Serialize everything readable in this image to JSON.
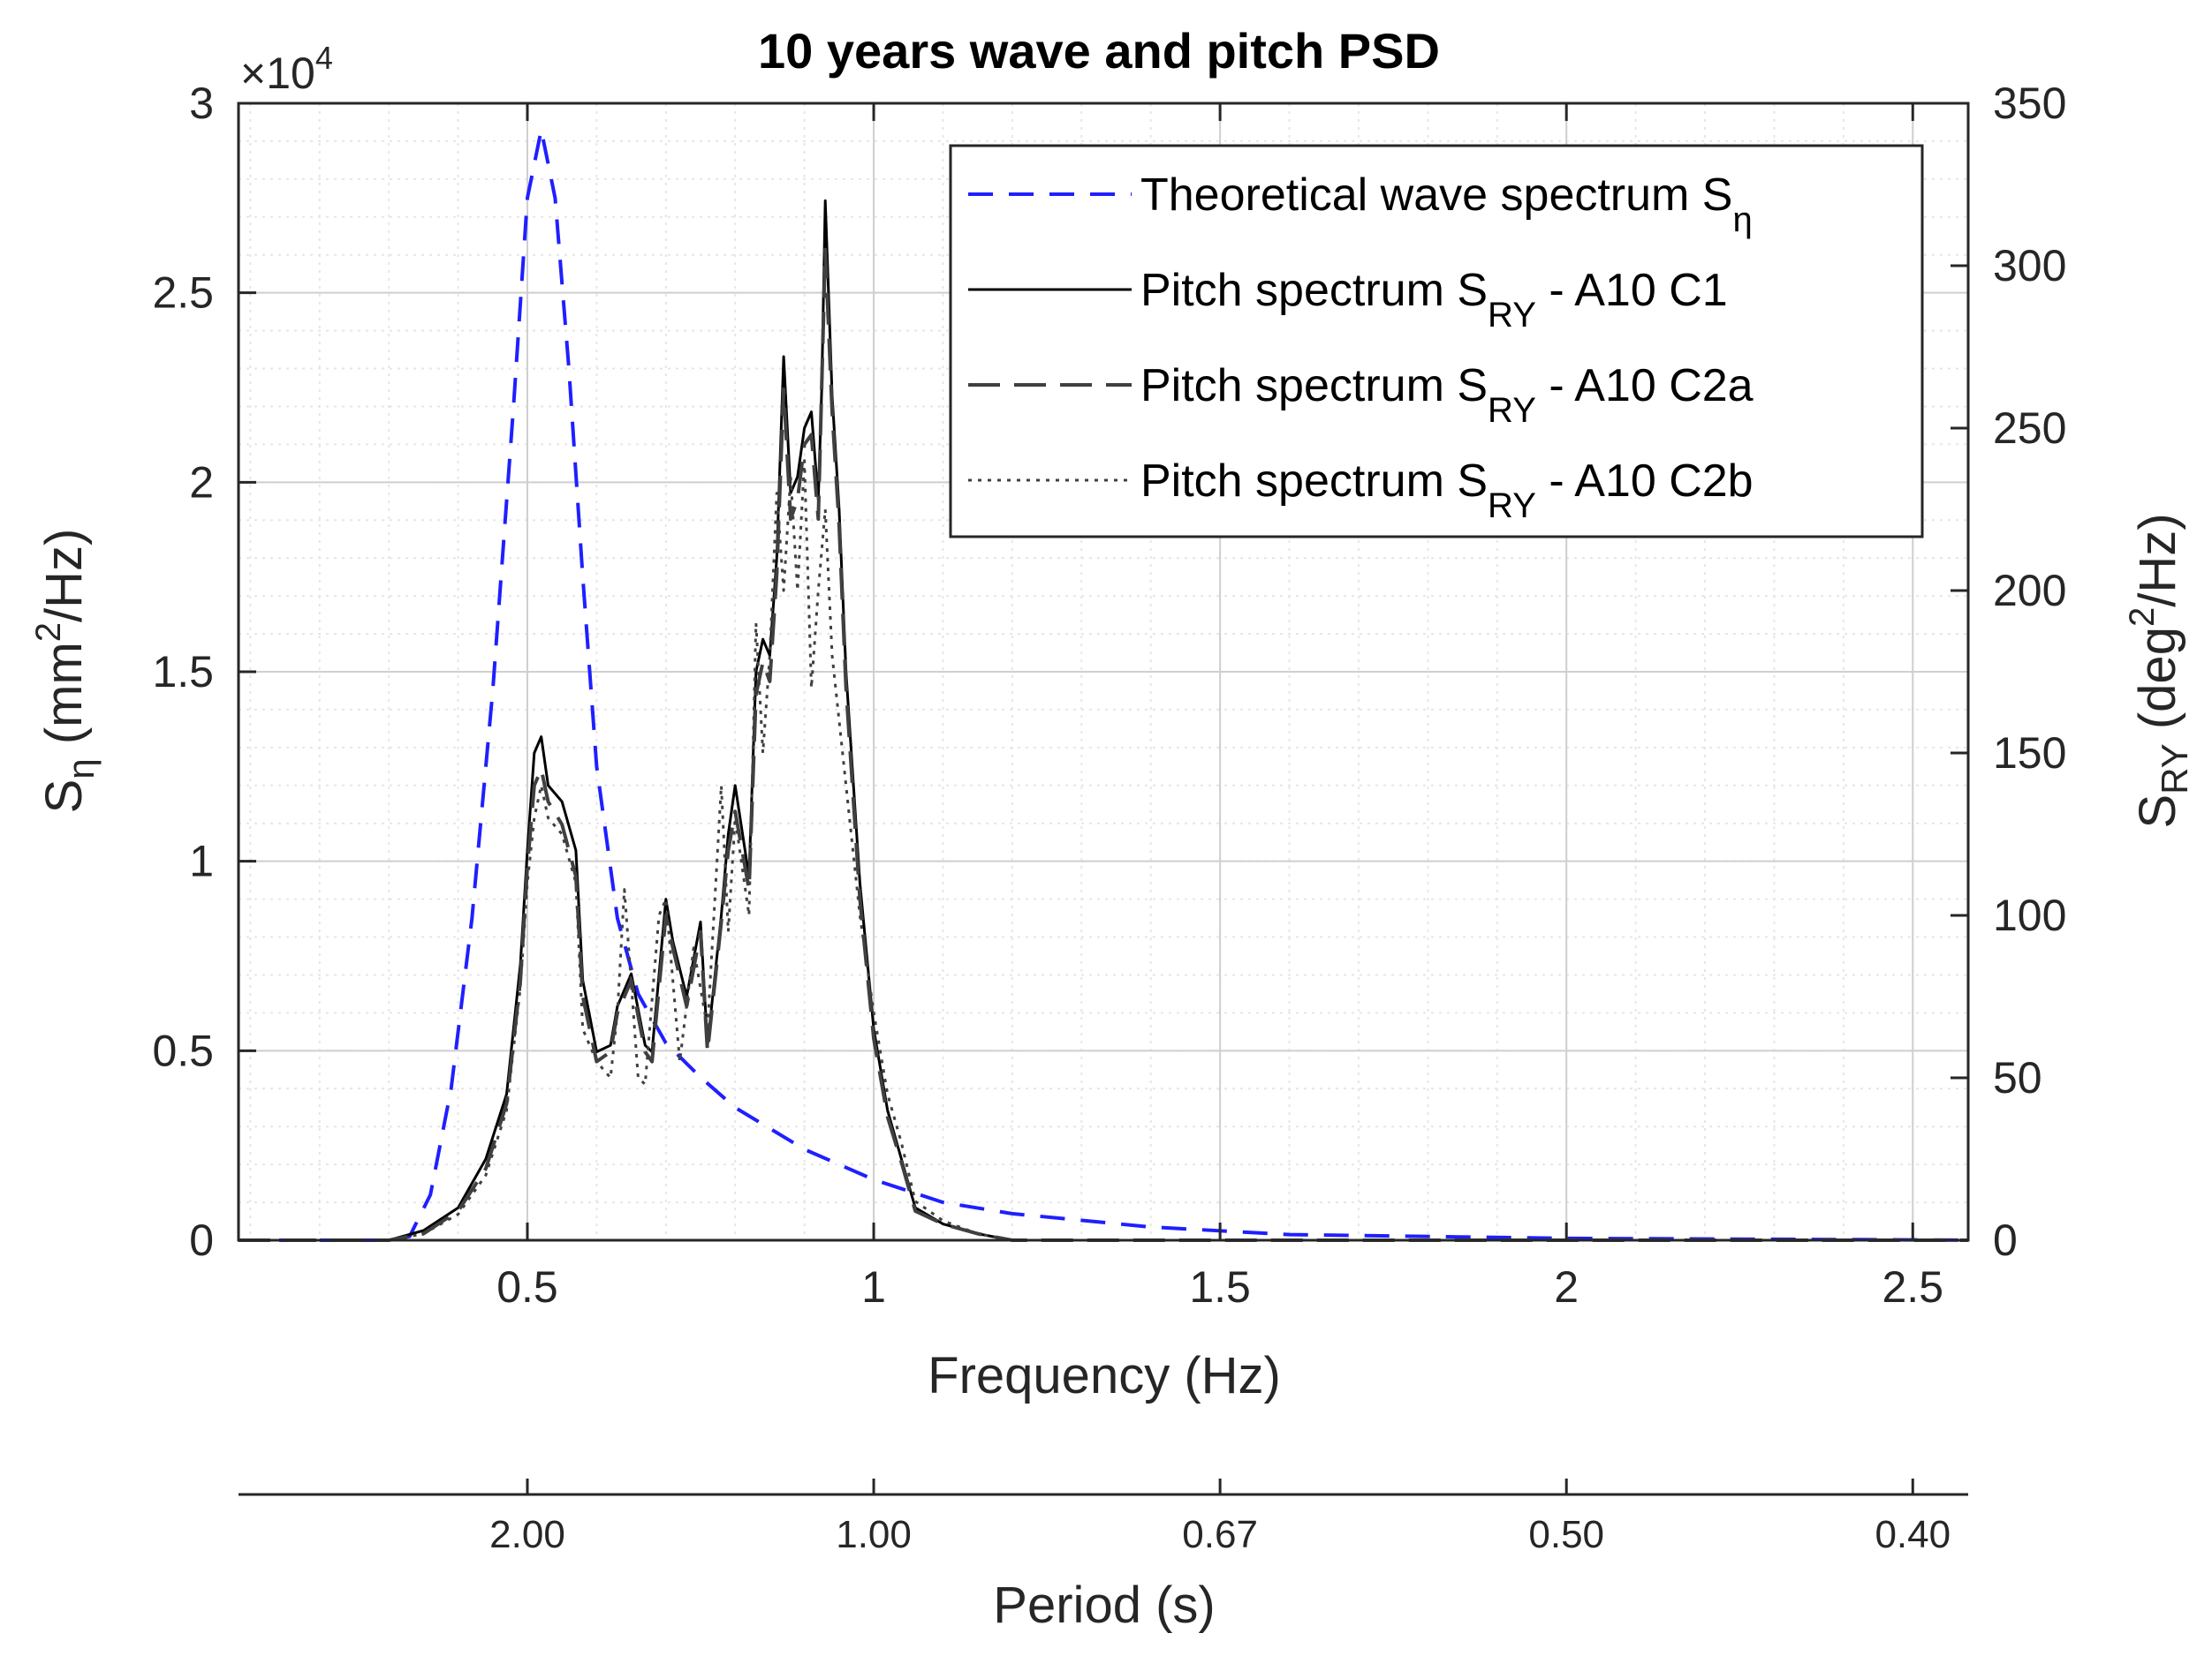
{
  "chart_data": {
    "type": "line",
    "title": "10 years wave and pitch PSD",
    "xlabel": "Frequency (Hz)",
    "xlim": [
      0.083,
      2.58
    ],
    "x_ticks": [
      0.5,
      1,
      1.5,
      2,
      2.5
    ],
    "x_tick_labels": [
      "0.5",
      "1",
      "1.5",
      "2",
      "2.5"
    ],
    "left_axis": {
      "label_main": "S",
      "label_sub": "η",
      "label_unit_pre": " (mm",
      "label_unit_sup": "2",
      "label_unit_post": "/Hz)",
      "ylim": [
        0,
        30000
      ],
      "ticks": [
        0,
        5000,
        10000,
        15000,
        20000,
        25000,
        30000
      ],
      "tick_labels": [
        "0",
        "0.5",
        "1",
        "1.5",
        "2",
        "2.5",
        "3"
      ],
      "exponent_prefix": "×10",
      "exponent_sup": "4"
    },
    "right_axis": {
      "label_main": "S",
      "label_sub": "RY",
      "label_unit_pre": " (deg",
      "label_unit_sup": "2",
      "label_unit_post": "/Hz)",
      "ylim": [
        0,
        350
      ],
      "ticks": [
        0,
        50,
        100,
        150,
        200,
        250,
        300,
        350
      ],
      "tick_labels": [
        "0",
        "50",
        "100",
        "150",
        "200",
        "250",
        "300",
        "350"
      ]
    },
    "period_axis": {
      "label": "Period (s)",
      "tick_frequencies": [
        0.5,
        1,
        1.5,
        2,
        2.5
      ],
      "tick_labels": [
        "2.00",
        "1.00",
        "0.67",
        "0.50",
        "0.40"
      ]
    },
    "grid": true,
    "legend_position": "top-right",
    "series": [
      {
        "name": "Theoretical wave spectrum S",
        "name_sub": "η",
        "name_suffix": "",
        "axis": "left",
        "style": "dashed",
        "color": "#1f1fff",
        "x": [
          0.083,
          0.3,
          0.33,
          0.36,
          0.39,
          0.42,
          0.45,
          0.48,
          0.5,
          0.52,
          0.54,
          0.56,
          0.58,
          0.6,
          0.63,
          0.66,
          0.7,
          0.75,
          0.8,
          0.9,
          1.0,
          1.1,
          1.2,
          1.4,
          1.6,
          2.0,
          2.5,
          2.58
        ],
        "y": [
          0,
          0,
          100,
          1200,
          4000,
          8500,
          14500,
          22000,
          27500,
          29300,
          27500,
          23000,
          17500,
          12500,
          8500,
          6500,
          5200,
          4300,
          3500,
          2400,
          1600,
          1000,
          700,
          350,
          150,
          50,
          10,
          0
        ]
      },
      {
        "name": "Pitch spectrum S",
        "name_sub": "RY",
        "name_suffix": "  -   A10 C1",
        "axis": "right",
        "style": "solid",
        "color": "#000000",
        "x": [
          0.083,
          0.3,
          0.35,
          0.4,
          0.44,
          0.47,
          0.49,
          0.5,
          0.51,
          0.52,
          0.53,
          0.55,
          0.57,
          0.58,
          0.6,
          0.62,
          0.63,
          0.65,
          0.67,
          0.68,
          0.7,
          0.71,
          0.73,
          0.75,
          0.76,
          0.78,
          0.79,
          0.8,
          0.82,
          0.83,
          0.84,
          0.85,
          0.86,
          0.87,
          0.88,
          0.89,
          0.9,
          0.91,
          0.92,
          0.925,
          0.93,
          0.94,
          0.95,
          0.96,
          0.98,
          1.0,
          1.02,
          1.04,
          1.06,
          1.1,
          1.15,
          1.2,
          1.3,
          2.58
        ],
        "y": [
          0,
          0,
          3,
          10,
          25,
          45,
          85,
          120,
          150,
          155,
          140,
          135,
          120,
          80,
          58,
          60,
          72,
          82,
          60,
          58,
          105,
          92,
          75,
          98,
          60,
          100,
          125,
          140,
          112,
          175,
          185,
          180,
          210,
          272,
          230,
          235,
          250,
          255,
          228,
          262,
          320,
          260,
          225,
          175,
          110,
          65,
          40,
          25,
          10,
          5,
          2,
          0,
          0,
          0
        ]
      },
      {
        "name": "Pitch spectrum S",
        "name_sub": "RY",
        "name_suffix": "  -   A10 C2a",
        "axis": "right",
        "style": "longdash",
        "color": "#404040",
        "x": [
          0.083,
          0.3,
          0.35,
          0.4,
          0.44,
          0.47,
          0.49,
          0.5,
          0.51,
          0.52,
          0.53,
          0.55,
          0.57,
          0.58,
          0.6,
          0.62,
          0.63,
          0.65,
          0.67,
          0.68,
          0.7,
          0.71,
          0.73,
          0.75,
          0.76,
          0.78,
          0.79,
          0.8,
          0.82,
          0.83,
          0.84,
          0.85,
          0.86,
          0.87,
          0.88,
          0.89,
          0.9,
          0.91,
          0.92,
          0.93,
          0.94,
          0.95,
          0.96,
          0.98,
          1.0,
          1.02,
          1.04,
          1.06,
          1.1,
          1.15,
          1.2,
          1.3,
          2.58
        ],
        "y": [
          0,
          0,
          2,
          9,
          22,
          42,
          80,
          115,
          140,
          145,
          135,
          128,
          112,
          75,
          55,
          58,
          70,
          80,
          58,
          55,
          100,
          90,
          72,
          95,
          58,
          98,
          120,
          132,
          108,
          168,
          178,
          172,
          205,
          262,
          222,
          228,
          245,
          248,
          222,
          305,
          255,
          220,
          170,
          105,
          62,
          38,
          24,
          9,
          5,
          2,
          0,
          0,
          0
        ]
      },
      {
        "name": "Pitch spectrum S",
        "name_sub": "RY",
        "name_suffix": "  -   A10 C2b",
        "axis": "right",
        "style": "dotted",
        "color": "#404040",
        "x": [
          0.083,
          0.3,
          0.35,
          0.4,
          0.44,
          0.47,
          0.49,
          0.5,
          0.51,
          0.52,
          0.53,
          0.55,
          0.57,
          0.58,
          0.6,
          0.62,
          0.63,
          0.64,
          0.66,
          0.67,
          0.69,
          0.7,
          0.72,
          0.74,
          0.76,
          0.78,
          0.79,
          0.8,
          0.82,
          0.83,
          0.84,
          0.85,
          0.86,
          0.87,
          0.88,
          0.89,
          0.9,
          0.91,
          0.92,
          0.93,
          0.94,
          0.95,
          0.96,
          0.98,
          1.0,
          1.02,
          1.04,
          1.06,
          1.1,
          1.15,
          1.2,
          1.3,
          2.58
        ],
        "y": [
          0,
          0,
          2,
          8,
          20,
          40,
          78,
          110,
          130,
          140,
          130,
          125,
          110,
          65,
          55,
          50,
          70,
          108,
          50,
          48,
          100,
          105,
          55,
          90,
          65,
          140,
          95,
          130,
          100,
          190,
          150,
          180,
          230,
          200,
          235,
          200,
          240,
          170,
          200,
          225,
          180,
          160,
          140,
          100,
          70,
          45,
          30,
          12,
          6,
          2,
          0,
          0,
          0
        ]
      }
    ]
  }
}
